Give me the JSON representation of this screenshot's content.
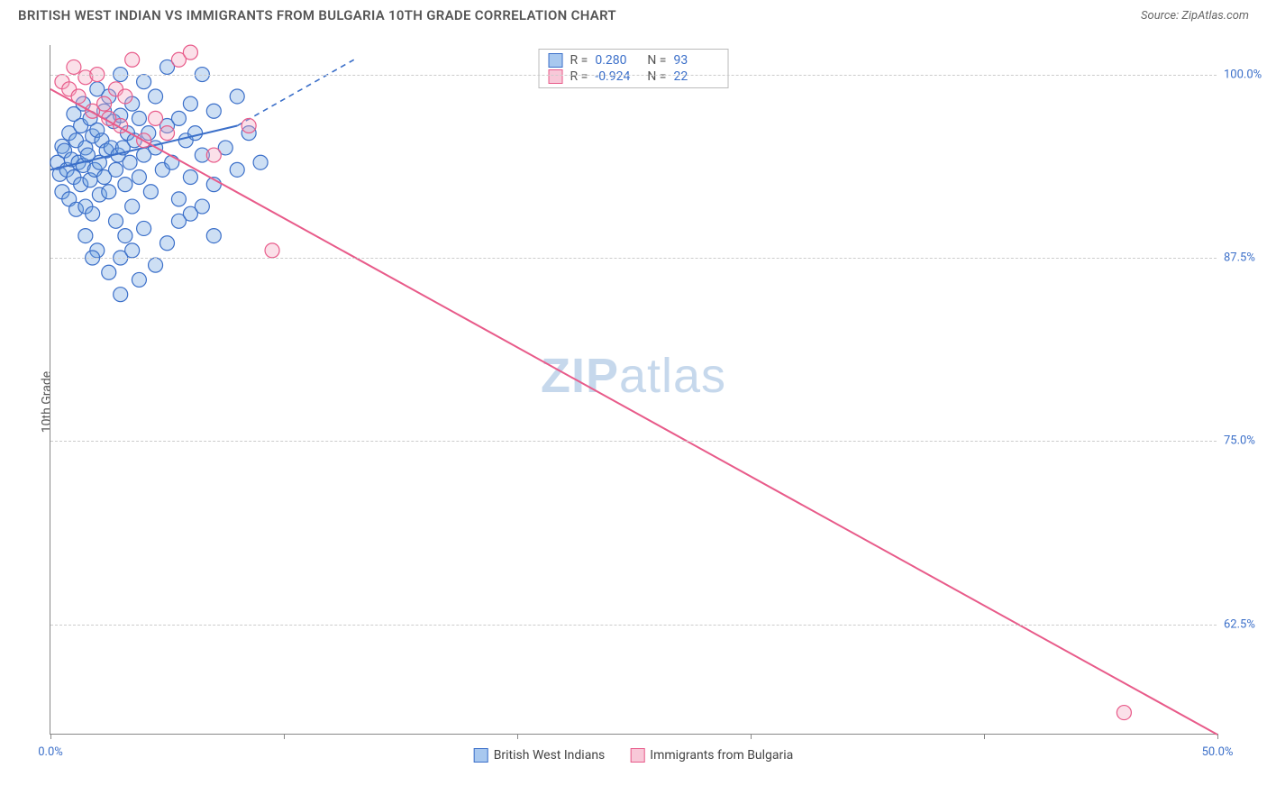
{
  "title": "BRITISH WEST INDIAN VS IMMIGRANTS FROM BULGARIA 10TH GRADE CORRELATION CHART",
  "source": "Source: ZipAtlas.com",
  "watermark": {
    "part1": "ZIP",
    "part2": "atlas"
  },
  "y_axis": {
    "label": "10th Grade"
  },
  "chart": {
    "type": "scatter-with-regression",
    "background_color": "#ffffff",
    "grid_color": "#cccccc",
    "axis_color": "#888888",
    "tick_label_color": "#3b6fc9",
    "x_domain": [
      0,
      50
    ],
    "y_domain": [
      55,
      102
    ],
    "x_ticks": [
      0,
      10,
      20,
      30,
      40,
      50
    ],
    "x_tick_labels": {
      "0": "0.0%",
      "50": "50.0%"
    },
    "y_ticks": [
      62.5,
      75.0,
      87.5,
      100.0
    ],
    "y_tick_labels": [
      "62.5%",
      "75.0%",
      "87.5%",
      "100.0%"
    ],
    "marker_radius": 8,
    "line_width": 2,
    "series": [
      {
        "key": "blue",
        "name": "British West Indians",
        "fill": "#6fa3e0",
        "stroke": "#3b6fc9",
        "r_value": "0.280",
        "n_value": "93",
        "points": [
          [
            0.3,
            94.0
          ],
          [
            0.4,
            93.2
          ],
          [
            0.5,
            95.1
          ],
          [
            0.5,
            92.0
          ],
          [
            0.6,
            94.8
          ],
          [
            0.7,
            93.5
          ],
          [
            0.8,
            96.0
          ],
          [
            0.8,
            91.5
          ],
          [
            0.9,
            94.2
          ],
          [
            1.0,
            97.3
          ],
          [
            1.0,
            93.0
          ],
          [
            1.1,
            95.5
          ],
          [
            1.1,
            90.8
          ],
          [
            1.2,
            94.0
          ],
          [
            1.3,
            96.5
          ],
          [
            1.3,
            92.5
          ],
          [
            1.4,
            98.0
          ],
          [
            1.4,
            93.8
          ],
          [
            1.5,
            95.0
          ],
          [
            1.5,
            91.0
          ],
          [
            1.6,
            94.5
          ],
          [
            1.7,
            97.0
          ],
          [
            1.7,
            92.8
          ],
          [
            1.8,
            95.8
          ],
          [
            1.8,
            90.5
          ],
          [
            1.9,
            93.5
          ],
          [
            2.0,
            96.2
          ],
          [
            2.0,
            99.0
          ],
          [
            2.1,
            94.0
          ],
          [
            2.1,
            91.8
          ],
          [
            2.2,
            95.5
          ],
          [
            2.3,
            97.5
          ],
          [
            2.3,
            93.0
          ],
          [
            2.4,
            94.8
          ],
          [
            2.5,
            98.5
          ],
          [
            2.5,
            92.0
          ],
          [
            2.6,
            95.0
          ],
          [
            2.7,
            96.8
          ],
          [
            2.8,
            93.5
          ],
          [
            2.8,
            90.0
          ],
          [
            2.9,
            94.5
          ],
          [
            3.0,
            97.2
          ],
          [
            3.0,
            100.0
          ],
          [
            3.1,
            95.0
          ],
          [
            3.2,
            92.5
          ],
          [
            3.3,
            96.0
          ],
          [
            3.4,
            94.0
          ],
          [
            3.5,
            98.0
          ],
          [
            3.5,
            91.0
          ],
          [
            3.6,
            95.5
          ],
          [
            3.8,
            93.0
          ],
          [
            3.8,
            97.0
          ],
          [
            4.0,
            94.5
          ],
          [
            4.0,
            99.5
          ],
          [
            4.2,
            96.0
          ],
          [
            4.3,
            92.0
          ],
          [
            4.5,
            95.0
          ],
          [
            4.5,
            98.5
          ],
          [
            4.8,
            93.5
          ],
          [
            5.0,
            96.5
          ],
          [
            5.0,
            100.5
          ],
          [
            5.2,
            94.0
          ],
          [
            5.5,
            97.0
          ],
          [
            5.5,
            91.5
          ],
          [
            5.8,
            95.5
          ],
          [
            6.0,
            98.0
          ],
          [
            6.0,
            93.0
          ],
          [
            6.2,
            96.0
          ],
          [
            6.5,
            94.5
          ],
          [
            6.5,
            100.0
          ],
          [
            7.0,
            97.5
          ],
          [
            7.0,
            92.5
          ],
          [
            7.5,
            95.0
          ],
          [
            8.0,
            98.5
          ],
          [
            8.0,
            93.5
          ],
          [
            8.5,
            96.0
          ],
          [
            9.0,
            94.0
          ],
          [
            2.5,
            86.5
          ],
          [
            3.0,
            87.5
          ],
          [
            3.2,
            89.0
          ],
          [
            3.5,
            88.0
          ],
          [
            4.0,
            89.5
          ],
          [
            4.5,
            87.0
          ],
          [
            5.0,
            88.5
          ],
          [
            5.5,
            90.0
          ],
          [
            2.0,
            88.0
          ],
          [
            1.5,
            89.0
          ],
          [
            1.8,
            87.5
          ],
          [
            3.0,
            85.0
          ],
          [
            3.8,
            86.0
          ],
          [
            6.0,
            90.5
          ],
          [
            6.5,
            91.0
          ],
          [
            7.0,
            89.0
          ]
        ],
        "trend_solid": {
          "x1": 0.0,
          "y1": 93.5,
          "x2": 8.0,
          "y2": 96.5
        },
        "trend_dash": {
          "x1": 8.0,
          "y1": 96.5,
          "x2": 13.0,
          "y2": 101.0
        }
      },
      {
        "key": "pink",
        "name": "Immigrants from Bulgaria",
        "fill": "#f4a6bf",
        "stroke": "#e85b8a",
        "r_value": "-0.924",
        "n_value": "22",
        "points": [
          [
            0.5,
            99.5
          ],
          [
            0.8,
            99.0
          ],
          [
            1.0,
            100.5
          ],
          [
            1.2,
            98.5
          ],
          [
            1.5,
            99.8
          ],
          [
            1.8,
            97.5
          ],
          [
            2.0,
            100.0
          ],
          [
            2.3,
            98.0
          ],
          [
            2.5,
            97.0
          ],
          [
            2.8,
            99.0
          ],
          [
            3.0,
            96.5
          ],
          [
            3.2,
            98.5
          ],
          [
            3.5,
            101.0
          ],
          [
            4.0,
            95.5
          ],
          [
            4.5,
            97.0
          ],
          [
            5.0,
            96.0
          ],
          [
            5.5,
            101.0
          ],
          [
            6.0,
            101.5
          ],
          [
            7.0,
            94.5
          ],
          [
            8.5,
            96.5
          ],
          [
            9.5,
            88.0
          ],
          [
            46.0,
            56.5
          ]
        ],
        "trend_solid": {
          "x1": 0.0,
          "y1": 99.0,
          "x2": 50.0,
          "y2": 55.0
        }
      }
    ]
  },
  "legend_top": {
    "r_label": "R =",
    "n_label": "N ="
  },
  "colors": {
    "blue_fill": "#a8c8ef",
    "blue_stroke": "#3b6fc9",
    "pink_fill": "#f8c8d8",
    "pink_stroke": "#e85b8a"
  }
}
